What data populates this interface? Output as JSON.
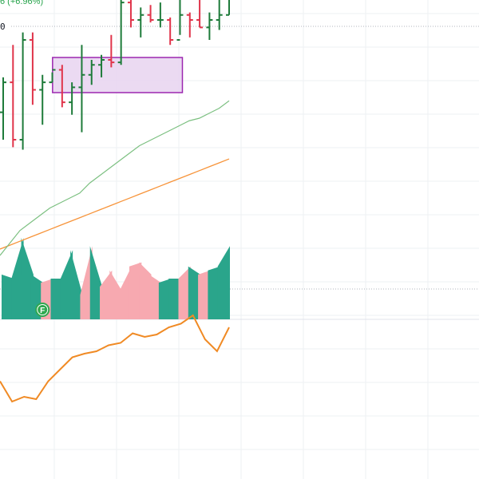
{
  "header": {
    "change_text": "6 (+6.96%)",
    "price_text": "0"
  },
  "colors": {
    "up": "#1e7b3a",
    "down": "#e0344a",
    "ma_fast": "#7cc081",
    "ma_slow": "#f7943a",
    "volume_up": "#2aa58b",
    "volume_down": "#f7a9b0",
    "indicator": "#f08a24",
    "range_box_fill": "#e7d4f0",
    "range_box_stroke": "#9c27b0",
    "grid": "#eef0f3",
    "dotted": "#b2b5be",
    "header_change": "#26a34b",
    "marker": "#2fa84f"
  },
  "marker": {
    "label": "F",
    "at_index": 4
  },
  "chart_data": [
    {
      "type": "ohlc",
      "title": "",
      "x": [
        0,
        1,
        2,
        3,
        4,
        5,
        6,
        7,
        8,
        9,
        10,
        11,
        12,
        13,
        14,
        15,
        16,
        17,
        18,
        19,
        20,
        21,
        22,
        23
      ],
      "ohlc": [
        [
          0.415,
          0.36,
          0.485,
          0.475
        ],
        [
          0.475,
          0.345,
          0.55,
          0.36
        ],
        [
          0.36,
          0.34,
          0.575,
          0.56
        ],
        [
          0.56,
          0.43,
          0.575,
          0.46
        ],
        [
          0.46,
          0.39,
          0.49,
          0.475
        ],
        [
          0.475,
          0.475,
          0.495,
          0.5
        ],
        [
          0.5,
          0.425,
          0.51,
          0.435
        ],
        [
          0.435,
          0.41,
          0.475,
          0.465
        ],
        [
          0.465,
          0.375,
          0.55,
          0.49
        ],
        [
          0.49,
          0.47,
          0.52,
          0.51
        ],
        [
          0.51,
          0.485,
          0.53,
          0.52
        ],
        [
          0.52,
          0.505,
          0.57,
          0.515
        ],
        [
          0.515,
          0.51,
          0.64,
          0.635
        ],
        [
          0.635,
          0.585,
          0.655,
          0.6
        ],
        [
          0.6,
          0.565,
          0.625,
          0.61
        ],
        [
          0.61,
          0.595,
          0.63,
          0.6
        ],
        [
          0.6,
          0.585,
          0.635,
          0.6
        ],
        [
          0.6,
          0.55,
          0.605,
          0.56
        ],
        [
          0.56,
          0.57,
          0.645,
          0.61
        ],
        [
          0.61,
          0.565,
          0.615,
          0.6
        ],
        [
          0.6,
          0.585,
          0.655,
          0.585
        ],
        [
          0.585,
          0.56,
          0.615,
          0.6
        ],
        [
          0.6,
          0.58,
          0.645,
          0.61
        ],
        [
          0.61,
          0.61,
          0.755,
          0.755
        ]
      ],
      "ma_fast": [
        0.28,
        0.305,
        0.33,
        0.345,
        0.36,
        0.375,
        0.385,
        0.395,
        0.405,
        0.425,
        0.44,
        0.455,
        0.47,
        0.485,
        0.5,
        0.51,
        0.52,
        0.53,
        0.54,
        0.55,
        0.555,
        0.565,
        0.575,
        0.59
      ],
      "ma_slow": [
        0.0,
        0.01,
        0.02,
        0.03,
        0.04,
        0.05,
        0.06,
        0.07,
        0.08,
        0.09,
        0.1,
        0.11,
        0.12,
        0.13,
        0.14,
        0.15,
        0.16,
        0.17,
        0.18,
        0.19,
        0.2,
        0.21,
        0.22,
        0.23
      ],
      "range_box": {
        "from_index": 6,
        "to_index": 18,
        "low": 0.52,
        "high": 0.6
      },
      "price_range": [
        0.0,
        0.8
      ]
    },
    {
      "type": "area",
      "title": "",
      "series": [
        {
          "values": [
            0.55,
            0.5,
            1.0,
            0.55,
            0.45,
            0.5,
            0.5,
            0.85,
            0.3,
            0.9,
            0.4,
            0.6,
            0.35,
            0.65,
            0.7,
            0.55,
            0.45,
            0.5,
            0.5,
            0.65,
            0.55,
            0.6,
            0.65,
            0.9
          ],
          "direction": [
            "up",
            "up",
            "up",
            "up",
            "down",
            "up",
            "up",
            "up",
            "down",
            "up",
            "down",
            "down",
            "down",
            "down",
            "down",
            "down",
            "up",
            "up",
            "down",
            "up",
            "down",
            "up",
            "up",
            "up"
          ]
        }
      ],
      "ylim": [
        0,
        1
      ]
    },
    {
      "type": "line",
      "title": "",
      "values": [
        0.35,
        0.18,
        0.22,
        0.2,
        0.35,
        0.45,
        0.55,
        0.58,
        0.6,
        0.65,
        0.67,
        0.75,
        0.72,
        0.74,
        0.8,
        0.83,
        0.9,
        0.7,
        0.6,
        0.8
      ],
      "ylim": [
        0,
        1
      ]
    }
  ]
}
